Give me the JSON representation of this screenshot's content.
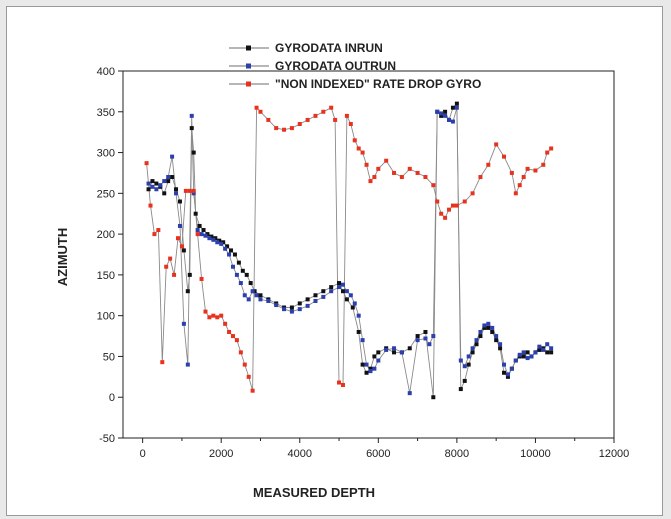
{
  "chart_data": {
    "type": "line",
    "title": "",
    "xlabel": "MEASURED DEPTH",
    "ylabel": "AZIMUTH",
    "xlim": [
      -500,
      12000
    ],
    "ylim": [
      -50,
      400
    ],
    "xticks": [
      0,
      2000,
      4000,
      6000,
      8000,
      10000,
      12000
    ],
    "yticks": [
      -50,
      0,
      50,
      100,
      150,
      200,
      250,
      300,
      350,
      400
    ],
    "legend_position": "top",
    "grid": false,
    "series": [
      {
        "name": "GYRODATA INRUN",
        "color": "#111111",
        "x": [
          150,
          250,
          350,
          450,
          550,
          650,
          750,
          850,
          950,
          1050,
          1150,
          1200,
          1250,
          1300,
          1350,
          1450,
          1550,
          1650,
          1750,
          1850,
          1950,
          2050,
          2150,
          2250,
          2350,
          2450,
          2550,
          2650,
          2750,
          2850,
          3000,
          3200,
          3400,
          3600,
          3800,
          4000,
          4200,
          4400,
          4600,
          4800,
          5000,
          5100,
          5200,
          5350,
          5500,
          5600,
          5700,
          5800,
          5900,
          6000,
          6200,
          6400,
          6600,
          6800,
          7000,
          7200,
          7400,
          7500,
          7600,
          7700,
          7800,
          7900,
          8000,
          8100,
          8200,
          8300,
          8400,
          8500,
          8600,
          8700,
          8800,
          8900,
          9000,
          9100,
          9200,
          9300,
          9400,
          9500,
          9600,
          9700,
          9800,
          9900,
          10000,
          10100,
          10200,
          10300,
          10400
        ],
        "y": [
          255,
          265,
          262,
          258,
          250,
          265,
          270,
          255,
          240,
          180,
          130,
          150,
          330,
          300,
          225,
          210,
          205,
          200,
          197,
          195,
          192,
          190,
          185,
          180,
          175,
          165,
          155,
          150,
          140,
          130,
          125,
          120,
          115,
          110,
          110,
          115,
          120,
          125,
          130,
          135,
          140,
          130,
          120,
          110,
          80,
          40,
          30,
          35,
          50,
          55,
          60,
          55,
          55,
          60,
          75,
          80,
          0,
          350,
          345,
          350,
          340,
          355,
          360,
          10,
          20,
          40,
          55,
          65,
          75,
          85,
          85,
          80,
          70,
          60,
          30,
          25,
          35,
          45,
          50,
          50,
          55,
          50,
          55,
          58,
          60,
          55,
          55
        ]
      },
      {
        "name": "GYRODATA OUTRUN",
        "color": "#2b3fae",
        "x": [
          150,
          250,
          350,
          450,
          550,
          650,
          750,
          850,
          950,
          1050,
          1150,
          1250,
          1300,
          1400,
          1500,
          1600,
          1700,
          1800,
          1900,
          2000,
          2100,
          2200,
          2300,
          2400,
          2500,
          2600,
          2700,
          2800,
          2900,
          3000,
          3200,
          3400,
          3600,
          3800,
          4000,
          4200,
          4400,
          4600,
          4800,
          5000,
          5100,
          5200,
          5300,
          5400,
          5500,
          5600,
          5700,
          5800,
          5900,
          6000,
          6200,
          6400,
          6600,
          6800,
          7000,
          7200,
          7300,
          7400,
          7500,
          7600,
          7700,
          7800,
          7900,
          8000,
          8100,
          8200,
          8300,
          8400,
          8500,
          8600,
          8700,
          8800,
          8900,
          9000,
          9100,
          9200,
          9300,
          9400,
          9500,
          9600,
          9700,
          9800,
          9900,
          10000,
          10100,
          10200,
          10300,
          10400
        ],
        "y": [
          262,
          258,
          255,
          260,
          265,
          270,
          295,
          250,
          210,
          90,
          40,
          345,
          250,
          205,
          200,
          198,
          195,
          193,
          190,
          188,
          182,
          175,
          160,
          150,
          140,
          125,
          120,
          130,
          125,
          120,
          118,
          113,
          108,
          105,
          108,
          112,
          118,
          123,
          130,
          135,
          138,
          130,
          125,
          115,
          100,
          70,
          40,
          32,
          35,
          45,
          58,
          60,
          55,
          5,
          70,
          72,
          65,
          75,
          350,
          348,
          345,
          340,
          338,
          355,
          45,
          38,
          50,
          60,
          70,
          80,
          88,
          90,
          85,
          75,
          65,
          40,
          28,
          35,
          45,
          52,
          55,
          48,
          50,
          55,
          62,
          58,
          65,
          60
        ]
      },
      {
        "name": "\"NON INDEXED\" RATE DROP GYRO",
        "color": "#e8321e",
        "x": [
          100,
          200,
          300,
          400,
          500,
          600,
          700,
          800,
          900,
          1000,
          1100,
          1200,
          1300,
          1400,
          1500,
          1600,
          1700,
          1800,
          1900,
          2000,
          2100,
          2200,
          2300,
          2400,
          2500,
          2600,
          2700,
          2800,
          2900,
          3000,
          3200,
          3400,
          3600,
          3800,
          4000,
          4200,
          4400,
          4600,
          4800,
          4900,
          5000,
          5100,
          5200,
          5300,
          5400,
          5500,
          5600,
          5700,
          5800,
          5900,
          6000,
          6200,
          6400,
          6600,
          6800,
          7000,
          7200,
          7400,
          7500,
          7600,
          7700,
          7800,
          7900,
          8000,
          8200,
          8400,
          8600,
          8800,
          9000,
          9200,
          9400,
          9500,
          9600,
          9700,
          9800,
          10000,
          10200,
          10300,
          10400
        ],
        "y": [
          287,
          235,
          200,
          205,
          43,
          160,
          170,
          150,
          195,
          185,
          253,
          253,
          253,
          200,
          145,
          105,
          98,
          100,
          98,
          100,
          90,
          80,
          75,
          70,
          55,
          40,
          25,
          8,
          355,
          350,
          340,
          330,
          328,
          330,
          335,
          340,
          345,
          350,
          355,
          340,
          18,
          15,
          345,
          335,
          315,
          305,
          300,
          285,
          265,
          270,
          280,
          290,
          275,
          270,
          280,
          275,
          270,
          260,
          240,
          225,
          220,
          230,
          235,
          235,
          240,
          250,
          270,
          285,
          310,
          295,
          275,
          250,
          260,
          270,
          280,
          278,
          285,
          300,
          305
        ]
      }
    ]
  }
}
